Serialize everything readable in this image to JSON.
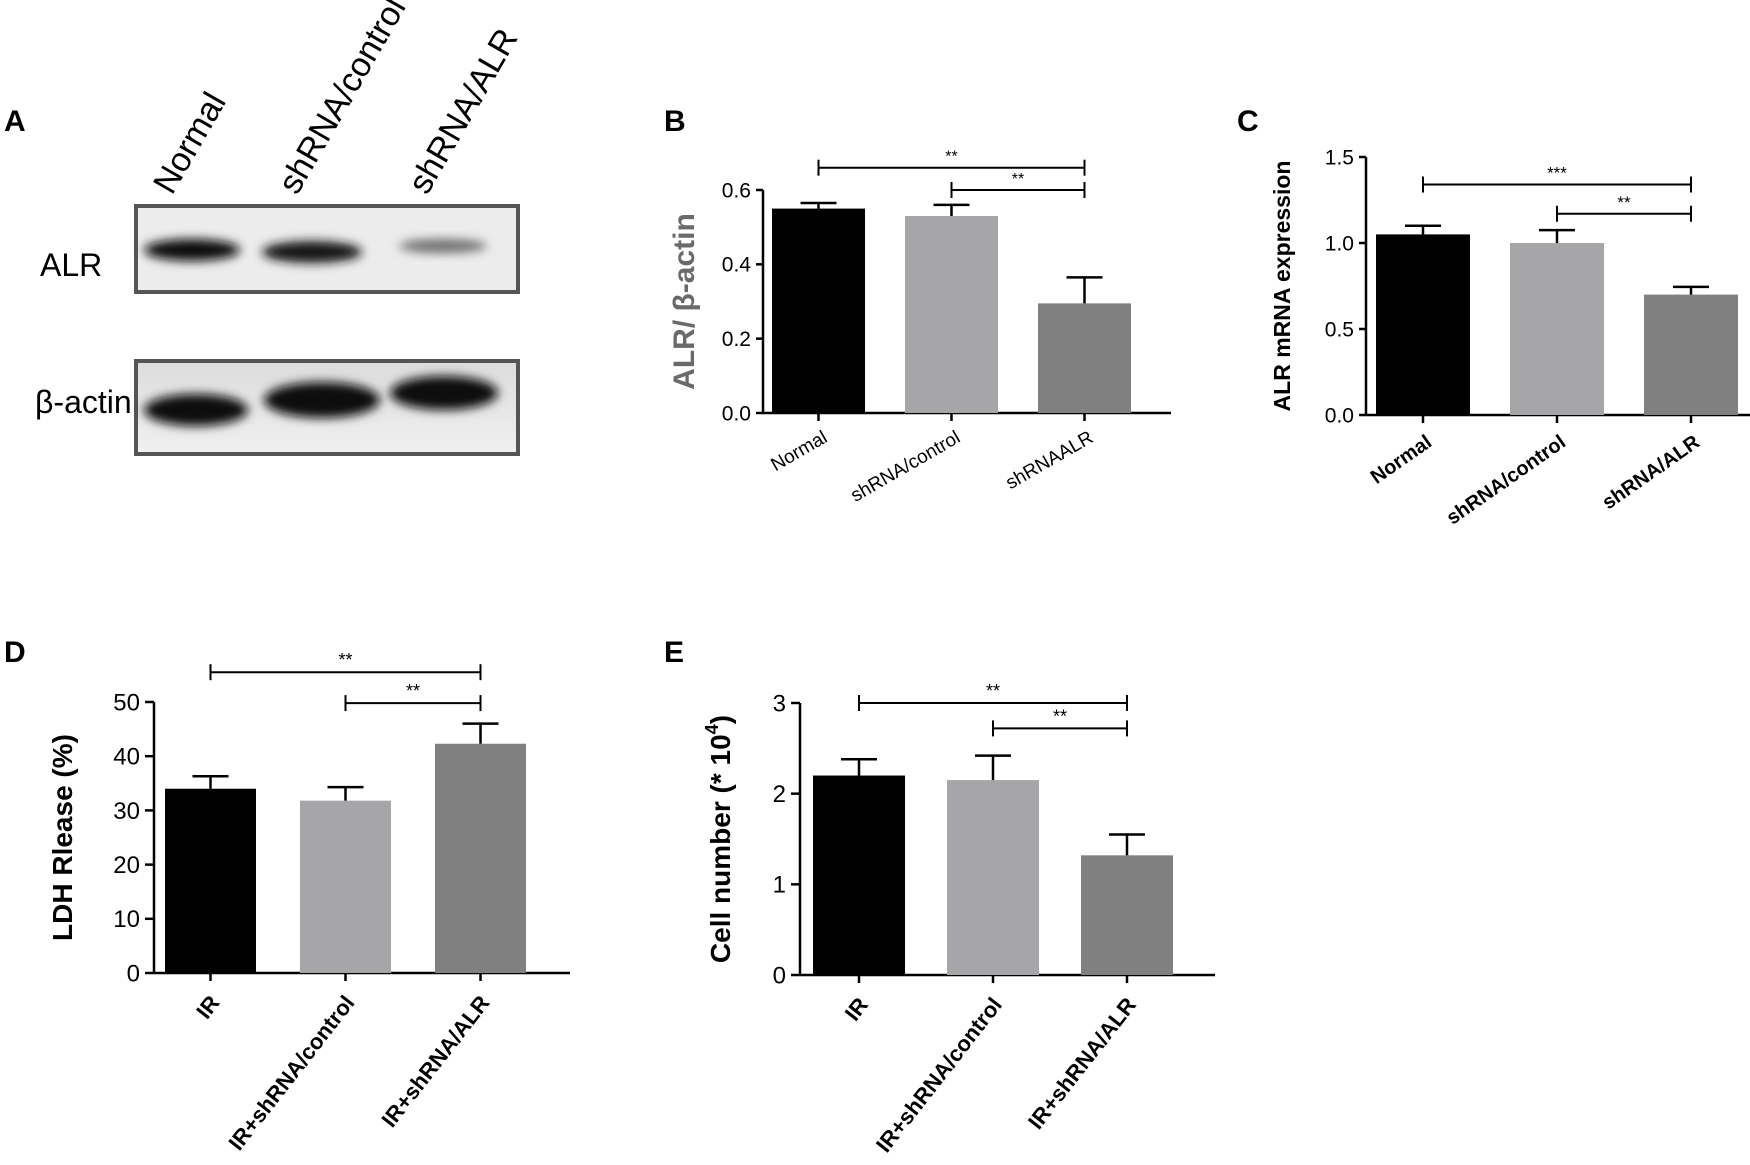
{
  "panels": {
    "A": {
      "label": "A",
      "lanes": [
        "Normal",
        "shRNA/control",
        "shRNA/ALR"
      ],
      "rows": [
        "ALR",
        "β-actin"
      ]
    }
  },
  "colors": {
    "black": "#000000",
    "light_gray": "#a6a6a9",
    "dark_gray": "#808080"
  },
  "chart_data": [
    {
      "panel": "B",
      "type": "bar",
      "categories": [
        "Normal",
        "shRNA/control",
        "shRNAALR"
      ],
      "values": [
        0.55,
        0.53,
        0.295
      ],
      "errors": [
        0.015,
        0.03,
        0.07
      ],
      "colors": [
        "#000000",
        "#a6a6a9",
        "#808080"
      ],
      "title": "",
      "xlabel": "",
      "ylabel": "ALR/ β-actin",
      "ylim": [
        0,
        0.6
      ],
      "yticks": [
        "0.0",
        "0.2",
        "0.4",
        "0.6"
      ],
      "ytick_values": [
        0,
        0.2,
        0.4,
        0.6
      ],
      "significance": [
        {
          "from": 0,
          "to": 2,
          "label": "**",
          "y": 0.66
        },
        {
          "from": 1,
          "to": 2,
          "label": "**",
          "y": 0.6
        }
      ]
    },
    {
      "panel": "C",
      "type": "bar",
      "categories": [
        "Normal",
        "shRNA/control",
        "shRNA/ALR"
      ],
      "values": [
        1.05,
        1.0,
        0.7
      ],
      "errors": [
        0.05,
        0.075,
        0.045
      ],
      "colors": [
        "#000000",
        "#a6a6a9",
        "#808080"
      ],
      "title": "",
      "xlabel": "",
      "ylabel": "ALR mRNA expression",
      "ylim": [
        0,
        1.5
      ],
      "yticks": [
        "0.0",
        "0.5",
        "1.0",
        "1.5"
      ],
      "ytick_values": [
        0,
        0.5,
        1.0,
        1.5
      ],
      "significance": [
        {
          "from": 0,
          "to": 2,
          "label": "***",
          "y": 1.34
        },
        {
          "from": 1,
          "to": 2,
          "label": "**",
          "y": 1.17
        }
      ]
    },
    {
      "panel": "D",
      "type": "bar",
      "categories": [
        "IR",
        "IR+shRNA/control",
        "IR+shRNA/ALR"
      ],
      "values": [
        34,
        31.8,
        42.3
      ],
      "errors": [
        2.3,
        2.5,
        3.7
      ],
      "colors": [
        "#000000",
        "#a6a6a9",
        "#808080"
      ],
      "title": "",
      "xlabel": "",
      "ylabel": "LDH Rlease (%)",
      "ylim": [
        0,
        50
      ],
      "yticks": [
        "0",
        "10",
        "20",
        "30",
        "40",
        "50"
      ],
      "ytick_values": [
        0,
        10,
        20,
        30,
        40,
        50
      ],
      "significance": [
        {
          "from": 0,
          "to": 2,
          "label": "**",
          "y": 55.5
        },
        {
          "from": 1,
          "to": 2,
          "label": "**",
          "y": 49.8
        }
      ]
    },
    {
      "panel": "E",
      "type": "bar",
      "categories": [
        "IR",
        "IR+shRNA/control",
        "IR+shRNA/ALR"
      ],
      "values": [
        2.2,
        2.15,
        1.32
      ],
      "errors": [
        0.18,
        0.27,
        0.23
      ],
      "colors": [
        "#000000",
        "#a6a6a9",
        "#808080"
      ],
      "title": "",
      "xlabel": "",
      "ylabel": "Cell number (* 10",
      "ylabel_sup": "4",
      "ylabel_close": ")",
      "ylim": [
        0,
        3
      ],
      "yticks": [
        "0",
        "1",
        "2",
        "3"
      ],
      "ytick_values": [
        0,
        1,
        2,
        3
      ],
      "significance": [
        {
          "from": 0,
          "to": 2,
          "label": "**",
          "y": 3.0
        },
        {
          "from": 1,
          "to": 2,
          "label": "**",
          "y": 2.72
        }
      ]
    }
  ]
}
